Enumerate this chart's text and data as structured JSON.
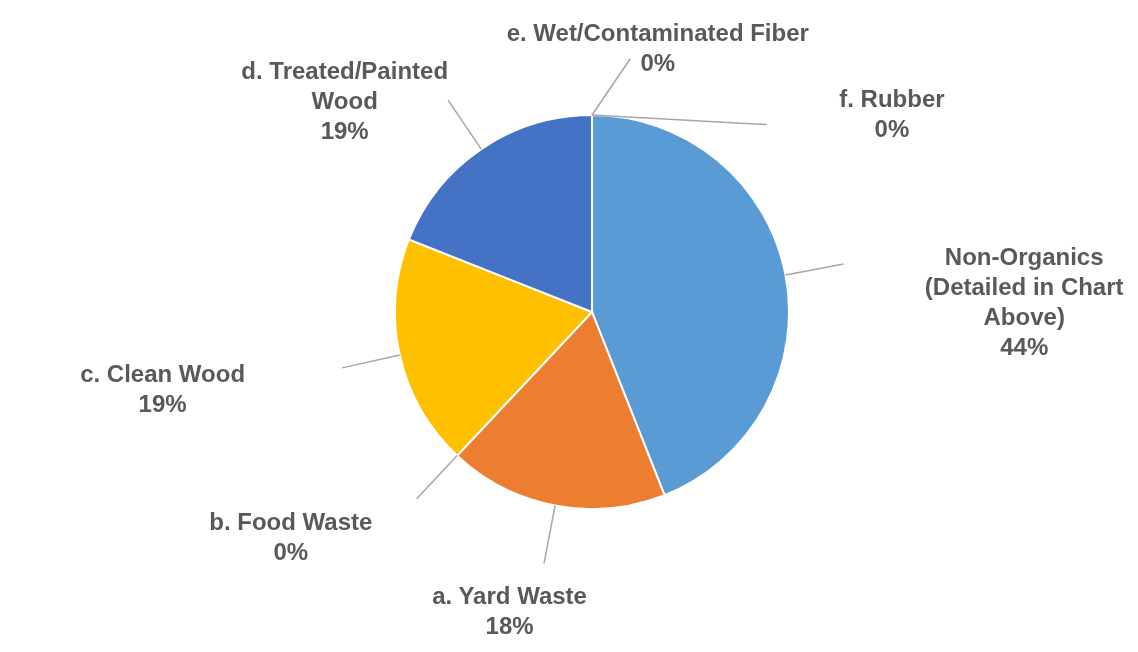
{
  "chart_data": {
    "type": "pie",
    "categories": [
      "Non-Organics (Detailed in Chart Above)",
      "a. Yard Waste",
      "b. Food Waste",
      "c. Clean Wood",
      "d. Treated/Painted Wood",
      "e. Wet/Contaminated Fiber",
      "f. Rubber"
    ],
    "values": [
      44,
      18,
      0,
      19,
      19,
      0,
      0
    ],
    "value_labels": [
      "44%",
      "18%",
      "0%",
      "19%",
      "19%",
      "0%",
      "0%"
    ],
    "colors": [
      "#5b9bd5",
      "#ed7d31",
      "#a5a5a5",
      "#ffc000",
      "#4472c4",
      "#70ad47",
      "#264478"
    ]
  }
}
